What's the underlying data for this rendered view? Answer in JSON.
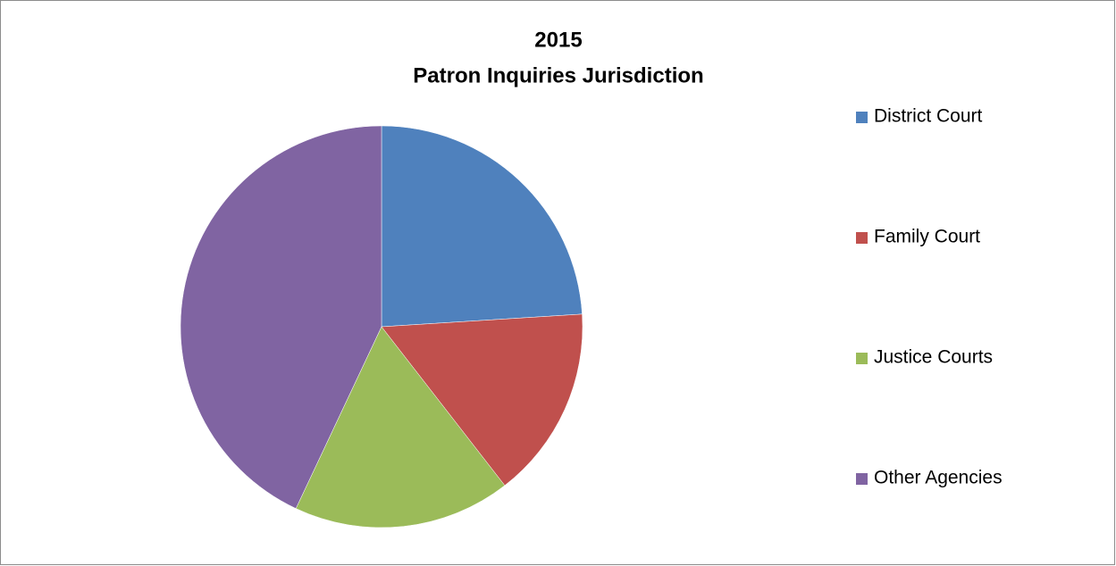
{
  "chart_data": {
    "type": "pie",
    "title": "2015",
    "subtitle": "Patron Inquiries Jurisdiction",
    "categories": [
      "District Court",
      "Family Court",
      "Justice Courts",
      "Other Agencies"
    ],
    "values": [
      24,
      15.5,
      17.5,
      43
    ],
    "colors": [
      "#4f81bd",
      "#c0504d",
      "#9bbb59",
      "#8064a2"
    ],
    "legend": "right"
  }
}
